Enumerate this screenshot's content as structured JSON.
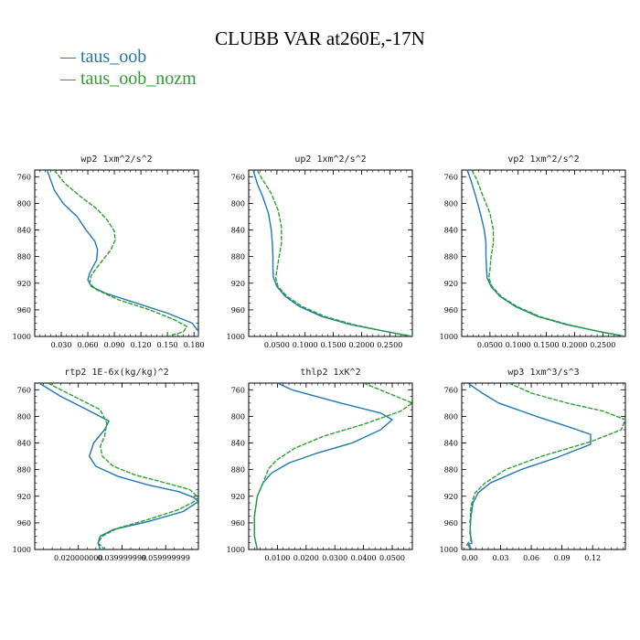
{
  "title": "CLUBB VAR at260E,-17N",
  "legend": [
    {
      "label": "taus_oob",
      "color": "#1f77b4"
    },
    {
      "label": "taus_oob_nozm",
      "color": "#2ca02c"
    }
  ],
  "chart_data": [
    {
      "type": "line",
      "title": "wp2  1xm^2/s^2",
      "xlim": [
        0.0,
        0.185
      ],
      "ylim": [
        1000,
        750
      ],
      "xticks": [
        0.03,
        0.06,
        0.09,
        0.12,
        0.15,
        0.18
      ],
      "xticklabels": [
        "0.030",
        "0.060",
        "0.090",
        "0.120",
        "0.150",
        "0.180"
      ],
      "yticks": [
        760,
        800,
        840,
        880,
        920,
        960,
        1000
      ],
      "series": [
        {
          "color": "#1f77b4",
          "dashed": false,
          "points": [
            [
              0.014,
              750
            ],
            [
              0.022,
              780
            ],
            [
              0.032,
              800
            ],
            [
              0.048,
              820
            ],
            [
              0.058,
              840
            ],
            [
              0.068,
              857
            ],
            [
              0.071,
              870
            ],
            [
              0.07,
              885
            ],
            [
              0.062,
              905
            ],
            [
              0.06,
              915
            ],
            [
              0.064,
              925
            ],
            [
              0.08,
              935
            ],
            [
              0.115,
              950
            ],
            [
              0.15,
              965
            ],
            [
              0.178,
              980
            ],
            [
              0.185,
              992
            ],
            [
              0.185,
              1000
            ]
          ]
        },
        {
          "color": "#2ca02c",
          "dashed": true,
          "points": [
            [
              0.022,
              750
            ],
            [
              0.034,
              770
            ],
            [
              0.052,
              790
            ],
            [
              0.07,
              808
            ],
            [
              0.082,
              825
            ],
            [
              0.09,
              842
            ],
            [
              0.091,
              855
            ],
            [
              0.086,
              870
            ],
            [
              0.074,
              890
            ],
            [
              0.064,
              908
            ],
            [
              0.062,
              920
            ],
            [
              0.07,
              930
            ],
            [
              0.095,
              945
            ],
            [
              0.13,
              960
            ],
            [
              0.158,
              975
            ],
            [
              0.172,
              985
            ],
            [
              0.168,
              993
            ],
            [
              0.15,
              1000
            ]
          ]
        }
      ]
    },
    {
      "type": "line",
      "title": "up2  1xm^2/s^2",
      "xlim": [
        0.0,
        0.29
      ],
      "ylim": [
        1000,
        750
      ],
      "xticks": [
        0.05,
        0.1,
        0.15,
        0.2,
        0.25
      ],
      "xticklabels": [
        "0.0500",
        "0.1000",
        "0.1500",
        "0.2000",
        "0.2500"
      ],
      "yticks": [
        760,
        800,
        840,
        880,
        920,
        960,
        1000
      ],
      "series": [
        {
          "color": "#1f77b4",
          "dashed": false,
          "points": [
            [
              0.008,
              750
            ],
            [
              0.015,
              770
            ],
            [
              0.025,
              790
            ],
            [
              0.035,
              815
            ],
            [
              0.04,
              840
            ],
            [
              0.042,
              860
            ],
            [
              0.043,
              880
            ],
            [
              0.043,
              900
            ],
            [
              0.044,
              912
            ],
            [
              0.05,
              925
            ],
            [
              0.065,
              940
            ],
            [
              0.09,
              955
            ],
            [
              0.13,
              970
            ],
            [
              0.18,
              982
            ],
            [
              0.24,
              992
            ],
            [
              0.29,
              1000
            ]
          ]
        },
        {
          "color": "#2ca02c",
          "dashed": true,
          "points": [
            [
              0.015,
              750
            ],
            [
              0.025,
              765
            ],
            [
              0.04,
              785
            ],
            [
              0.052,
              810
            ],
            [
              0.058,
              835
            ],
            [
              0.058,
              860
            ],
            [
              0.054,
              880
            ],
            [
              0.05,
              900
            ],
            [
              0.048,
              912
            ],
            [
              0.052,
              925
            ],
            [
              0.068,
              940
            ],
            [
              0.095,
              955
            ],
            [
              0.135,
              970
            ],
            [
              0.185,
              982
            ],
            [
              0.24,
              992
            ],
            [
              0.29,
              1000
            ]
          ]
        }
      ]
    },
    {
      "type": "line",
      "title": "vp2  1xm^2/s^2",
      "xlim": [
        0.0,
        0.29
      ],
      "ylim": [
        1000,
        750
      ],
      "xticks": [
        0.05,
        0.1,
        0.15,
        0.2,
        0.25
      ],
      "xticklabels": [
        "0.0500",
        "0.1000",
        "0.1500",
        "0.2000",
        "0.2500"
      ],
      "yticks": [
        760,
        800,
        840,
        880,
        920,
        960,
        1000
      ],
      "series": [
        {
          "color": "#1f77b4",
          "dashed": false,
          "points": [
            [
              0.01,
              750
            ],
            [
              0.018,
              770
            ],
            [
              0.025,
              790
            ],
            [
              0.033,
              815
            ],
            [
              0.04,
              840
            ],
            [
              0.043,
              860
            ],
            [
              0.043,
              880
            ],
            [
              0.044,
              900
            ],
            [
              0.045,
              912
            ],
            [
              0.052,
              925
            ],
            [
              0.068,
              940
            ],
            [
              0.095,
              955
            ],
            [
              0.135,
              970
            ],
            [
              0.185,
              982
            ],
            [
              0.24,
              992
            ],
            [
              0.29,
              1000
            ]
          ]
        },
        {
          "color": "#2ca02c",
          "dashed": true,
          "points": [
            [
              0.018,
              750
            ],
            [
              0.027,
              765
            ],
            [
              0.038,
              790
            ],
            [
              0.05,
              815
            ],
            [
              0.056,
              840
            ],
            [
              0.056,
              860
            ],
            [
              0.052,
              880
            ],
            [
              0.05,
              900
            ],
            [
              0.048,
              912
            ],
            [
              0.054,
              925
            ],
            [
              0.07,
              940
            ],
            [
              0.098,
              955
            ],
            [
              0.138,
              970
            ],
            [
              0.188,
              982
            ],
            [
              0.24,
              992
            ],
            [
              0.29,
              1000
            ]
          ]
        }
      ]
    },
    {
      "type": "line",
      "title": "rtp2  1E-6x(kg/kg)^2",
      "xlim": [
        0.0,
        0.075
      ],
      "ylim": [
        1000,
        750
      ],
      "xticks": [
        0.02,
        0.04,
        0.06
      ],
      "xticklabels": [
        "0.020000000",
        "0.039999999",
        "0.059999999"
      ],
      "yticks": [
        760,
        800,
        840,
        880,
        920,
        960,
        1000
      ],
      "series": [
        {
          "color": "#1f77b4",
          "dashed": false,
          "points": [
            [
              0.002,
              750
            ],
            [
              0.012,
              770
            ],
            [
              0.024,
              790
            ],
            [
              0.034,
              807
            ],
            [
              0.032,
              820
            ],
            [
              0.027,
              840
            ],
            [
              0.025,
              860
            ],
            [
              0.028,
              875
            ],
            [
              0.038,
              890
            ],
            [
              0.052,
              903
            ],
            [
              0.066,
              913
            ],
            [
              0.073,
              922
            ],
            [
              0.075,
              928
            ],
            [
              0.068,
              943
            ],
            [
              0.052,
              958
            ],
            [
              0.036,
              970
            ],
            [
              0.03,
              980
            ],
            [
              0.029,
              990
            ],
            [
              0.03,
              1000
            ]
          ]
        },
        {
          "color": "#2ca02c",
          "dashed": true,
          "points": [
            [
              0.006,
              750
            ],
            [
              0.018,
              770
            ],
            [
              0.03,
              790
            ],
            [
              0.033,
              810
            ],
            [
              0.032,
              830
            ],
            [
              0.03,
              845
            ],
            [
              0.031,
              860
            ],
            [
              0.036,
              875
            ],
            [
              0.046,
              888
            ],
            [
              0.06,
              900
            ],
            [
              0.071,
              910
            ],
            [
              0.075,
              922
            ],
            [
              0.072,
              930
            ],
            [
              0.066,
              940
            ],
            [
              0.052,
              955
            ],
            [
              0.038,
              968
            ],
            [
              0.031,
              980
            ],
            [
              0.029,
              990
            ],
            [
              0.032,
              1000
            ]
          ]
        }
      ]
    },
    {
      "type": "line",
      "title": "thlp2  1xK^2",
      "xlim": [
        0.0,
        0.057
      ],
      "ylim": [
        1000,
        750
      ],
      "xticks": [
        0.01,
        0.02,
        0.03,
        0.04,
        0.05
      ],
      "xticklabels": [
        "0.0100",
        "0.0200",
        "0.0300",
        "0.0400",
        "0.0500"
      ],
      "yticks": [
        760,
        800,
        840,
        880,
        920,
        960,
        1000
      ],
      "series": [
        {
          "color": "#1f77b4",
          "dashed": false,
          "points": [
            [
              0.01,
              750
            ],
            [
              0.015,
              760
            ],
            [
              0.032,
              780
            ],
            [
              0.046,
              795
            ],
            [
              0.05,
              805
            ],
            [
              0.046,
              820
            ],
            [
              0.036,
              840
            ],
            [
              0.024,
              855
            ],
            [
              0.014,
              870
            ],
            [
              0.008,
              885
            ],
            [
              0.005,
              900
            ],
            [
              0.003,
              920
            ],
            [
              0.002,
              950
            ],
            [
              0.002,
              980
            ],
            [
              0.003,
              1000
            ]
          ]
        },
        {
          "color": "#2ca02c",
          "dashed": true,
          "points": [
            [
              0.04,
              750
            ],
            [
              0.057,
              780
            ],
            [
              0.053,
              792
            ],
            [
              0.04,
              812
            ],
            [
              0.026,
              830
            ],
            [
              0.016,
              848
            ],
            [
              0.01,
              865
            ],
            [
              0.007,
              878
            ],
            [
              0.005,
              900
            ],
            [
              0.003,
              920
            ],
            [
              0.002,
              950
            ],
            [
              0.002,
              980
            ],
            [
              0.003,
              1000
            ]
          ]
        }
      ]
    },
    {
      "type": "line",
      "title": "wp3  1xm^3/s^3",
      "xlim": [
        -0.008,
        0.152
      ],
      "ylim": [
        1000,
        750
      ],
      "xticks": [
        0.0,
        0.03,
        0.06,
        0.09,
        0.12
      ],
      "xticklabels": [
        "0.00",
        "0.03",
        "0.06",
        "0.09",
        "0.12"
      ],
      "yticks": [
        760,
        800,
        840,
        880,
        920,
        960,
        1000
      ],
      "series": [
        {
          "color": "#1f77b4",
          "dashed": false,
          "points": [
            [
              -0.002,
              750
            ],
            [
              0.012,
              765
            ],
            [
              0.028,
              780
            ],
            [
              0.065,
              800
            ],
            [
              0.095,
              815
            ],
            [
              0.118,
              827
            ],
            [
              0.118,
              842
            ],
            [
              0.085,
              862
            ],
            [
              0.05,
              880
            ],
            [
              0.02,
              900
            ],
            [
              0.008,
              915
            ],
            [
              0.003,
              930
            ],
            [
              0.001,
              950
            ],
            [
              0.0,
              975
            ],
            [
              0.002,
              990
            ],
            [
              -0.002,
              993
            ],
            [
              0.002,
              1000
            ]
          ]
        },
        {
          "color": "#2ca02c",
          "dashed": true,
          "points": [
            [
              0.038,
              750
            ],
            [
              0.06,
              765
            ],
            [
              0.095,
              780
            ],
            [
              0.13,
              792
            ],
            [
              0.152,
              805
            ],
            [
              0.148,
              820
            ],
            [
              0.118,
              838
            ],
            [
              0.07,
              860
            ],
            [
              0.035,
              880
            ],
            [
              0.015,
              900
            ],
            [
              0.005,
              915
            ],
            [
              0.001,
              935
            ],
            [
              0.0,
              960
            ],
            [
              0.001,
              985
            ],
            [
              -0.003,
              993
            ],
            [
              0.002,
              1000
            ]
          ]
        }
      ]
    }
  ]
}
